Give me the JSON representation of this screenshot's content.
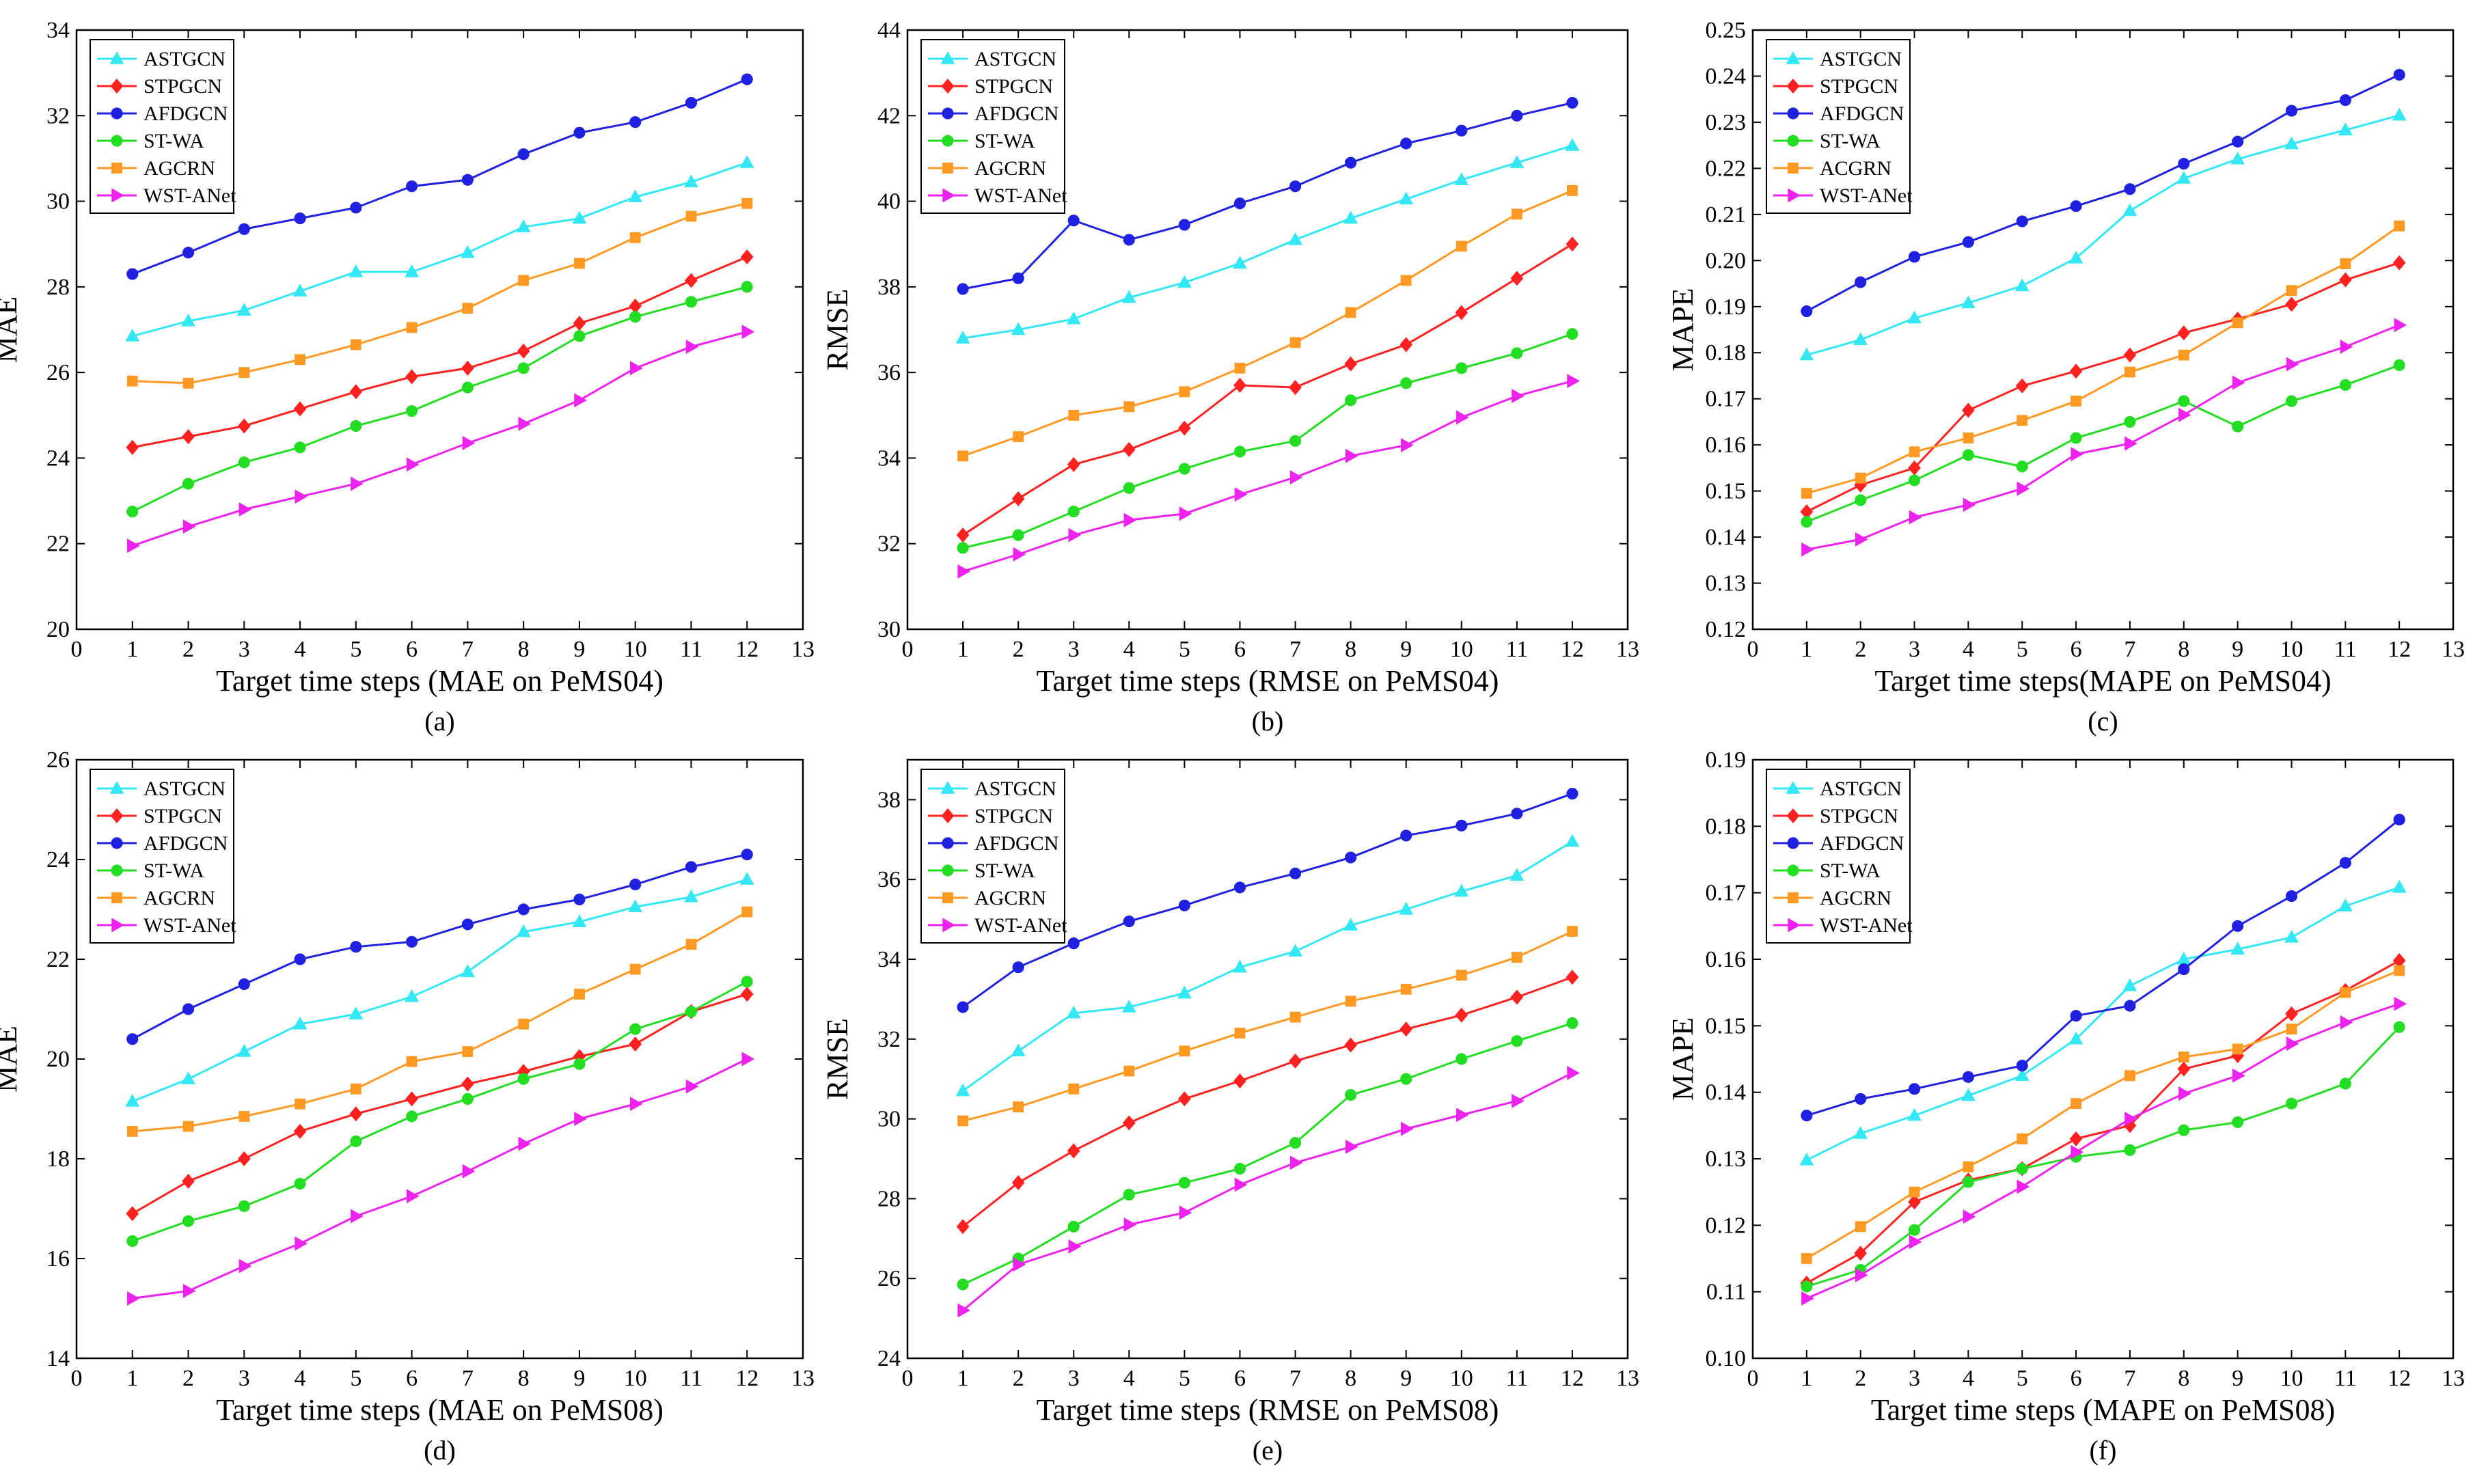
{
  "chart_data": [
    {
      "type": "line",
      "panel_label": "(a)",
      "ylabel": "MAE",
      "xlabel": "Target time steps (MAE on PeMS04)",
      "xlim": [
        0,
        13
      ],
      "ylim": [
        20,
        34
      ],
      "yticks": [
        "20",
        "22",
        "24",
        "26",
        "28",
        "30",
        "32",
        "34"
      ],
      "xticks": [
        "0",
        "1",
        "2",
        "3",
        "4",
        "5",
        "6",
        "7",
        "8",
        "9",
        "10",
        "11",
        "12",
        "13"
      ],
      "x": [
        1,
        2,
        3,
        4,
        5,
        6,
        7,
        8,
        9,
        10,
        11,
        12
      ],
      "legend_position": "top-left",
      "series": [
        {
          "name": "ASTGCN",
          "color": "#33e8f4",
          "marker": "triangle-up",
          "values": [
            26.85,
            27.2,
            27.45,
            27.9,
            28.35,
            28.35,
            28.8,
            29.4,
            29.6,
            30.1,
            30.45,
            30.9
          ]
        },
        {
          "name": "STPGCN",
          "color": "#ff2020",
          "marker": "diamond",
          "values": [
            24.25,
            24.5,
            24.75,
            25.15,
            25.55,
            25.9,
            26.1,
            26.5,
            27.15,
            27.55,
            28.15,
            28.7
          ]
        },
        {
          "name": "AFDGCN",
          "color": "#2020e0",
          "marker": "circle",
          "values": [
            28.3,
            28.8,
            29.35,
            29.6,
            29.85,
            30.35,
            30.5,
            31.1,
            31.6,
            31.85,
            32.3,
            32.85
          ]
        },
        {
          "name": "ST-WA",
          "color": "#22dd22",
          "marker": "circle",
          "values": [
            22.75,
            23.4,
            23.9,
            24.25,
            24.75,
            25.1,
            25.65,
            26.1,
            26.85,
            27.3,
            27.65,
            28.0
          ]
        },
        {
          "name": "AGCRN",
          "color": "#ff9922",
          "marker": "square",
          "values": [
            25.8,
            25.75,
            26.0,
            26.3,
            26.65,
            27.05,
            27.5,
            28.15,
            28.55,
            29.15,
            29.65,
            29.95
          ]
        },
        {
          "name": "WST-ANet",
          "color": "#ee22ee",
          "marker": "triangle-right",
          "values": [
            21.95,
            22.4,
            22.8,
            23.1,
            23.4,
            23.85,
            24.35,
            24.8,
            25.35,
            26.1,
            26.6,
            26.95
          ]
        }
      ]
    },
    {
      "type": "line",
      "panel_label": "(b)",
      "ylabel": "RMSE",
      "xlabel": "Target time steps (RMSE on PeMS04)",
      "xlim": [
        0,
        13
      ],
      "ylim": [
        30,
        44
      ],
      "yticks": [
        "30",
        "32",
        "34",
        "36",
        "38",
        "40",
        "42",
        "44"
      ],
      "xticks": [
        "0",
        "1",
        "2",
        "3",
        "4",
        "5",
        "6",
        "7",
        "8",
        "9",
        "10",
        "11",
        "12",
        "13"
      ],
      "x": [
        1,
        2,
        3,
        4,
        5,
        6,
        7,
        8,
        9,
        10,
        11,
        12
      ],
      "legend_position": "top-left",
      "series": [
        {
          "name": "ASTGCN",
          "color": "#33e8f4",
          "marker": "triangle-up",
          "values": [
            36.8,
            37.0,
            37.25,
            37.75,
            38.1,
            38.55,
            39.1,
            39.6,
            40.05,
            40.5,
            40.9,
            41.3
          ]
        },
        {
          "name": "STPGCN",
          "color": "#ff2020",
          "marker": "diamond",
          "values": [
            32.2,
            33.05,
            33.85,
            34.2,
            34.7,
            35.7,
            35.65,
            36.2,
            36.65,
            37.4,
            38.2,
            39.0
          ]
        },
        {
          "name": "AFDGCN",
          "color": "#2020e0",
          "marker": "circle",
          "values": [
            37.95,
            38.2,
            39.55,
            39.1,
            39.45,
            39.95,
            40.35,
            40.9,
            41.35,
            41.65,
            42.0,
            42.3
          ]
        },
        {
          "name": "ST-WA",
          "color": "#22dd22",
          "marker": "circle",
          "values": [
            31.9,
            32.2,
            32.75,
            33.3,
            33.75,
            34.15,
            34.4,
            35.35,
            35.75,
            36.1,
            36.45,
            36.9
          ]
        },
        {
          "name": "AGCRN",
          "color": "#ff9922",
          "marker": "square",
          "values": [
            34.05,
            34.5,
            35.0,
            35.2,
            35.55,
            36.1,
            36.7,
            37.4,
            38.15,
            38.95,
            39.7,
            40.25
          ]
        },
        {
          "name": "WST-ANet",
          "color": "#ee22ee",
          "marker": "triangle-right",
          "values": [
            31.35,
            31.75,
            32.2,
            32.55,
            32.7,
            33.15,
            33.55,
            34.05,
            34.3,
            34.95,
            35.45,
            35.8
          ]
        }
      ]
    },
    {
      "type": "line",
      "panel_label": "(c)",
      "ylabel": "MAPE",
      "xlabel": "Target time steps(MAPE on PeMS04)",
      "xlim": [
        0,
        13
      ],
      "ylim": [
        0.12,
        0.25
      ],
      "yticks": [
        "0.12",
        "0.13",
        "0.14",
        "0.15",
        "0.16",
        "0.17",
        "0.18",
        "0.19",
        "0.20",
        "0.21",
        "0.22",
        "0.23",
        "0.24",
        "0.25"
      ],
      "xticks": [
        "0",
        "1",
        "2",
        "3",
        "4",
        "5",
        "6",
        "7",
        "8",
        "9",
        "10",
        "11",
        "12",
        "13"
      ],
      "x": [
        1,
        2,
        3,
        4,
        5,
        6,
        7,
        8,
        9,
        10,
        11,
        12
      ],
      "legend_position": "top-left",
      "series": [
        {
          "name": "ASTGCN",
          "color": "#33e8f4",
          "marker": "triangle-up",
          "values": [
            0.1795,
            0.1828,
            0.1875,
            0.1908,
            0.1945,
            0.2005,
            0.2108,
            0.2178,
            0.222,
            0.2253,
            0.2283,
            0.2315
          ]
        },
        {
          "name": "STPGCN",
          "color": "#ff2020",
          "marker": "diamond",
          "values": [
            0.1455,
            0.1513,
            0.155,
            0.1675,
            0.1728,
            0.176,
            0.1795,
            0.1843,
            0.1873,
            0.1905,
            0.1958,
            0.1995
          ]
        },
        {
          "name": "AFDGCN",
          "color": "#2020e0",
          "marker": "circle",
          "values": [
            0.189,
            0.1953,
            0.2008,
            0.204,
            0.2085,
            0.2118,
            0.2155,
            0.221,
            0.2258,
            0.2325,
            0.2348,
            0.2403
          ]
        },
        {
          "name": "ST-WA",
          "color": "#22dd22",
          "marker": "circle",
          "values": [
            0.1433,
            0.148,
            0.1523,
            0.1578,
            0.1553,
            0.1615,
            0.165,
            0.1695,
            0.164,
            0.1695,
            0.173,
            0.1773
          ]
        },
        {
          "name": "ACGRN",
          "color": "#ff9922",
          "marker": "square",
          "values": [
            0.1495,
            0.1528,
            0.1585,
            0.1615,
            0.1653,
            0.1695,
            0.1758,
            0.1795,
            0.1865,
            0.1935,
            0.1993,
            0.2075
          ]
        },
        {
          "name": "WST-ANet",
          "color": "#ee22ee",
          "marker": "triangle-right",
          "values": [
            0.1373,
            0.1395,
            0.1443,
            0.147,
            0.1505,
            0.158,
            0.1603,
            0.1665,
            0.1735,
            0.1775,
            0.1813,
            0.186
          ]
        }
      ]
    },
    {
      "type": "line",
      "panel_label": "(d)",
      "ylabel": "MAE",
      "xlabel": "Target  time  steps (MAE on PeMS08)",
      "xlim": [
        0,
        13
      ],
      "ylim": [
        14,
        26
      ],
      "yticks": [
        "14",
        "16",
        "18",
        "20",
        "22",
        "24",
        "26"
      ],
      "xticks": [
        "0",
        "1",
        "2",
        "3",
        "4",
        "5",
        "6",
        "7",
        "8",
        "9",
        "10",
        "11",
        "12",
        "13"
      ],
      "x": [
        1,
        2,
        3,
        4,
        5,
        6,
        7,
        8,
        9,
        10,
        11,
        12
      ],
      "legend_position": "top-left",
      "series": [
        {
          "name": "ASTGCN",
          "color": "#33e8f4",
          "marker": "triangle-up",
          "values": [
            19.15,
            19.6,
            20.15,
            20.7,
            20.9,
            21.25,
            21.75,
            22.55,
            22.75,
            23.05,
            23.25,
            23.6
          ]
        },
        {
          "name": "STPGCN",
          "color": "#ff2020",
          "marker": "diamond",
          "values": [
            16.9,
            17.55,
            18.0,
            18.55,
            18.9,
            19.2,
            19.5,
            19.75,
            20.05,
            20.3,
            20.95,
            21.3
          ]
        },
        {
          "name": "AFDGCN",
          "color": "#2020e0",
          "marker": "circle",
          "values": [
            20.4,
            21.0,
            21.5,
            22.0,
            22.25,
            22.35,
            22.7,
            23.0,
            23.2,
            23.5,
            23.85,
            24.1
          ]
        },
        {
          "name": "ST-WA",
          "color": "#22dd22",
          "marker": "circle",
          "values": [
            16.35,
            16.75,
            17.05,
            17.5,
            18.35,
            18.85,
            19.2,
            19.6,
            19.9,
            20.6,
            20.95,
            21.55
          ]
        },
        {
          "name": "AGCRN",
          "color": "#ff9922",
          "marker": "square",
          "values": [
            18.55,
            18.65,
            18.85,
            19.1,
            19.4,
            19.95,
            20.15,
            20.7,
            21.3,
            21.8,
            22.3,
            22.95
          ]
        },
        {
          "name": "WST-ANet",
          "color": "#ee22ee",
          "marker": "triangle-right",
          "values": [
            15.2,
            15.35,
            15.85,
            16.3,
            16.85,
            17.25,
            17.75,
            18.3,
            18.8,
            19.1,
            19.45,
            20.0
          ]
        }
      ]
    },
    {
      "type": "line",
      "panel_label": "(e)",
      "ylabel": "RMSE",
      "xlabel": "Target  time  steps (RMSE on PeMS08)",
      "xlim": [
        0,
        13
      ],
      "ylim": [
        24,
        39
      ],
      "yticks": [
        "24",
        "26",
        "28",
        "30",
        "32",
        "34",
        "36",
        "38"
      ],
      "xticks": [
        "0",
        "1",
        "2",
        "3",
        "4",
        "5",
        "6",
        "7",
        "8",
        "9",
        "10",
        "11",
        "12",
        "13"
      ],
      "x": [
        1,
        2,
        3,
        4,
        5,
        6,
        7,
        8,
        9,
        10,
        11,
        12
      ],
      "legend_position": "top-left",
      "series": [
        {
          "name": "ASTGCN",
          "color": "#33e8f4",
          "marker": "triangle-up",
          "values": [
            30.7,
            31.7,
            32.65,
            32.8,
            33.15,
            33.8,
            34.2,
            34.85,
            35.25,
            35.7,
            36.1,
            36.95
          ]
        },
        {
          "name": "STPGCN",
          "color": "#ff2020",
          "marker": "diamond",
          "values": [
            27.3,
            28.4,
            29.2,
            29.9,
            30.5,
            30.95,
            31.45,
            31.85,
            32.25,
            32.6,
            33.05,
            33.55
          ]
        },
        {
          "name": "AFDGCN",
          "color": "#2020e0",
          "marker": "circle",
          "values": [
            32.8,
            33.8,
            34.4,
            34.95,
            35.35,
            35.8,
            36.15,
            36.55,
            37.1,
            37.35,
            37.65,
            38.15
          ]
        },
        {
          "name": "ST-WA",
          "color": "#22dd22",
          "marker": "circle",
          "values": [
            25.85,
            26.5,
            27.3,
            28.1,
            28.4,
            28.75,
            29.4,
            30.6,
            31.0,
            31.5,
            31.95,
            32.4
          ]
        },
        {
          "name": "AGCRN",
          "color": "#ff9922",
          "marker": "square",
          "values": [
            29.95,
            30.3,
            30.75,
            31.2,
            31.7,
            32.15,
            32.55,
            32.95,
            33.25,
            33.6,
            34.05,
            34.7
          ]
        },
        {
          "name": "WST-ANet",
          "color": "#ee22ee",
          "marker": "triangle-right",
          "values": [
            25.2,
            26.35,
            26.8,
            27.35,
            27.65,
            28.35,
            28.9,
            29.3,
            29.75,
            30.1,
            30.45,
            31.15
          ]
        }
      ]
    },
    {
      "type": "line",
      "panel_label": "(f)",
      "ylabel": "MAPE",
      "xlabel": "Target time steps (MAPE on PeMS08)",
      "xlim": [
        0,
        13
      ],
      "ylim": [
        0.1,
        0.19
      ],
      "yticks": [
        "0.10",
        "0.11",
        "0.12",
        "0.13",
        "0.14",
        "0.15",
        "0.16",
        "0.17",
        "0.18",
        "0.19"
      ],
      "xticks": [
        "0",
        "1",
        "2",
        "3",
        "4",
        "5",
        "6",
        "7",
        "8",
        "9",
        "10",
        "11",
        "12",
        "13"
      ],
      "x": [
        1,
        2,
        3,
        4,
        5,
        6,
        7,
        8,
        9,
        10,
        11,
        12
      ],
      "legend_position": "top-left",
      "series": [
        {
          "name": "ASTGCN",
          "color": "#33e8f4",
          "marker": "triangle-up",
          "values": [
            0.1298,
            0.1338,
            0.1365,
            0.1395,
            0.1425,
            0.148,
            0.156,
            0.16,
            0.1615,
            0.1633,
            0.168,
            0.1708
          ]
        },
        {
          "name": "STPGCN",
          "color": "#ff2020",
          "marker": "diamond",
          "values": [
            0.1113,
            0.1158,
            0.1235,
            0.1268,
            0.1285,
            0.133,
            0.135,
            0.1435,
            0.1455,
            0.1518,
            0.1553,
            0.1598
          ]
        },
        {
          "name": "AFDGCN",
          "color": "#2020e0",
          "marker": "circle",
          "values": [
            0.1365,
            0.139,
            0.1405,
            0.1423,
            0.144,
            0.1515,
            0.153,
            0.1585,
            0.165,
            0.1695,
            0.1745,
            0.181
          ]
        },
        {
          "name": "ST-WA",
          "color": "#22dd22",
          "marker": "circle",
          "values": [
            0.1108,
            0.1133,
            0.1193,
            0.1265,
            0.1285,
            0.1303,
            0.1313,
            0.1343,
            0.1355,
            0.1383,
            0.1413,
            0.1498
          ]
        },
        {
          "name": "AGCRN",
          "color": "#ff9922",
          "marker": "square",
          "values": [
            0.115,
            0.1198,
            0.125,
            0.1288,
            0.133,
            0.1383,
            0.1425,
            0.1453,
            0.1465,
            0.1495,
            0.155,
            0.1583
          ]
        },
        {
          "name": "WST-ANet",
          "color": "#ee22ee",
          "marker": "triangle-right",
          "values": [
            0.109,
            0.1125,
            0.1175,
            0.1213,
            0.1258,
            0.131,
            0.136,
            0.1398,
            0.1425,
            0.1473,
            0.1505,
            0.1533
          ]
        }
      ]
    }
  ]
}
